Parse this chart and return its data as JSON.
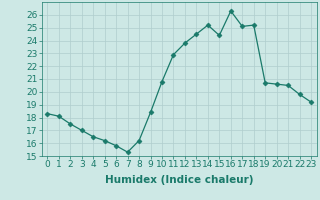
{
  "title": "",
  "xlabel": "Humidex (Indice chaleur)",
  "ylabel": "",
  "x": [
    0,
    1,
    2,
    3,
    4,
    5,
    6,
    7,
    8,
    9,
    10,
    11,
    12,
    13,
    14,
    15,
    16,
    17,
    18,
    19,
    20,
    21,
    22,
    23
  ],
  "y": [
    18.3,
    18.1,
    17.5,
    17.0,
    16.5,
    16.2,
    15.8,
    15.3,
    16.2,
    18.4,
    20.8,
    22.9,
    23.8,
    24.5,
    25.2,
    24.4,
    26.3,
    25.1,
    25.2,
    20.7,
    20.6,
    20.5,
    19.8,
    19.2
  ],
  "line_color": "#1a7a6a",
  "marker": "D",
  "marker_size": 2.5,
  "bg_color": "#cde8e5",
  "grid_color": "#b0cece",
  "ylim": [
    15,
    27
  ],
  "yticks": [
    15,
    16,
    17,
    18,
    19,
    20,
    21,
    22,
    23,
    24,
    25,
    26
  ],
  "xlim": [
    -0.5,
    23.5
  ],
  "tick_fontsize": 6.5,
  "label_fontsize": 7.5
}
